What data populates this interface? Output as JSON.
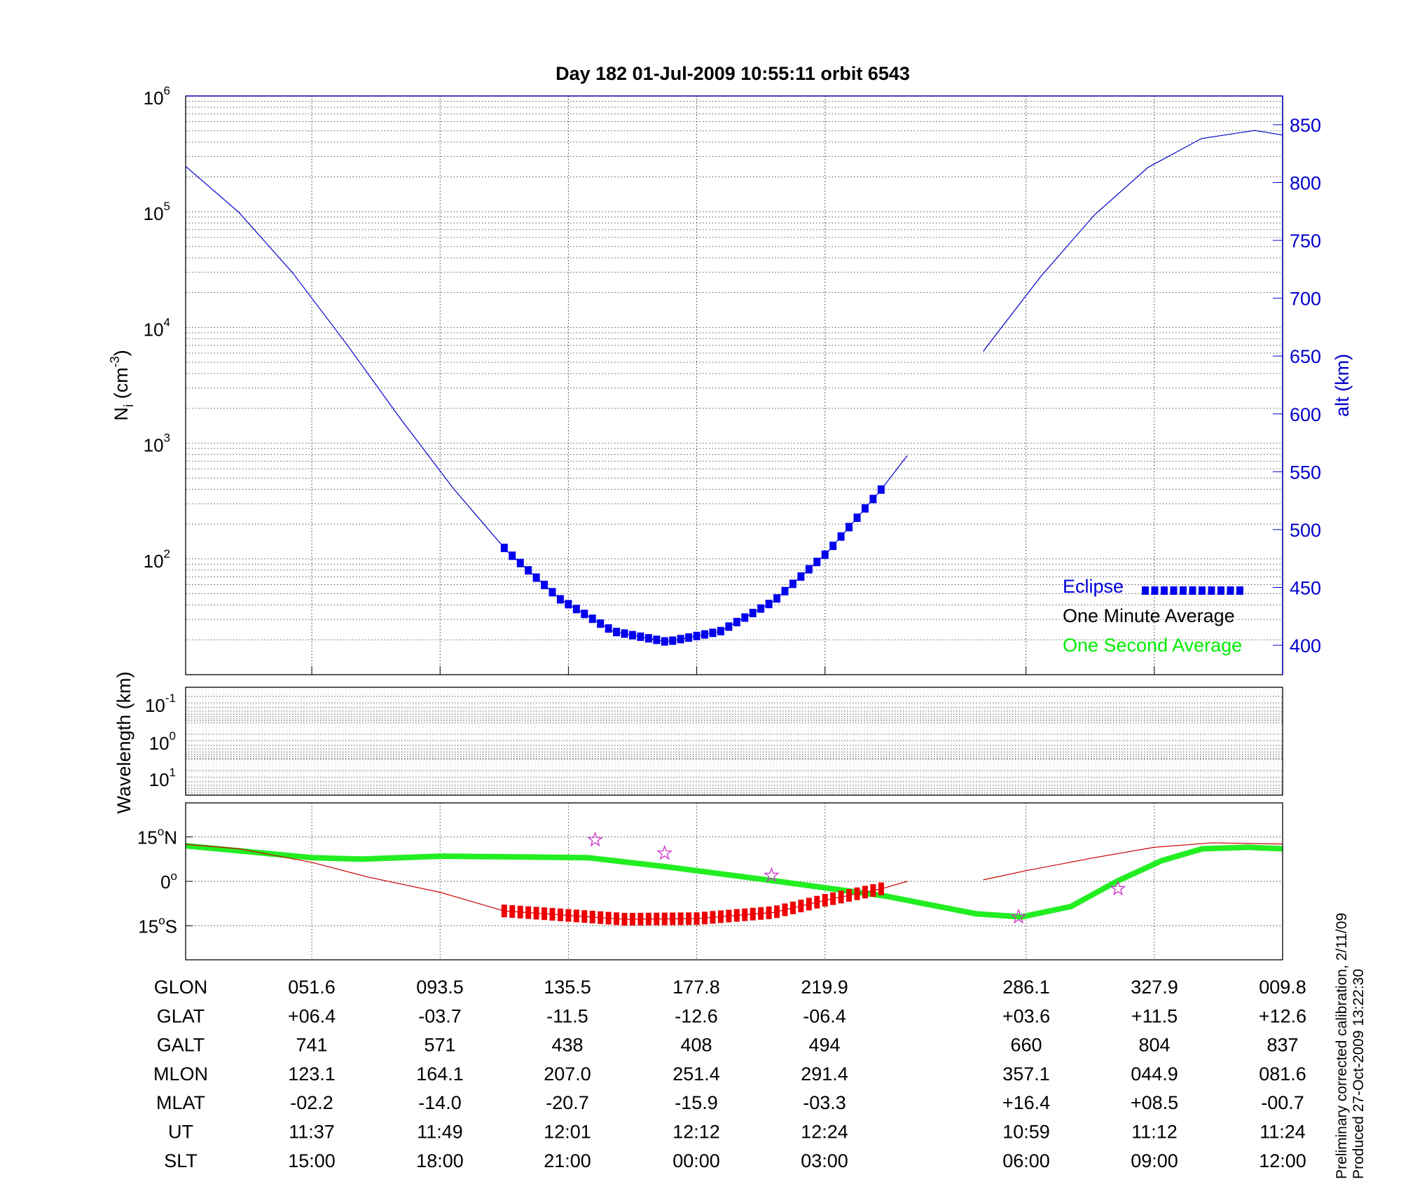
{
  "chart_data": [
    {
      "type": "line",
      "title": "Day 182  01-Jul-2009 10:55:11   orbit 6543",
      "ylabel_left": "N",
      "ylabel_left_sub": "i",
      "ylabel_left_unit": " (cm",
      "ylabel_left_exp": "-3",
      "ylabel_left_close": ")",
      "ylabel_right": "alt (km)",
      "xlim": [
        0,
        102.6
      ],
      "ylim_left_log10": [
        1,
        6
      ],
      "yticks_left": [
        {
          "base": "10",
          "exp": "6",
          "v": 6
        },
        {
          "base": "10",
          "exp": "5",
          "v": 5
        },
        {
          "base": "10",
          "exp": "4",
          "v": 4
        },
        {
          "base": "10",
          "exp": "3",
          "v": 3
        },
        {
          "base": "10",
          "exp": "2",
          "v": 2
        }
      ],
      "ylim_right": [
        374.6,
        874.8
      ],
      "yticks_right": [
        "850",
        "800",
        "750",
        "700",
        "650",
        "600",
        "550",
        "500",
        "450",
        "400"
      ],
      "xticks": [
        11.8,
        23.8,
        35.8,
        47.8,
        59.8,
        78.6,
        90.6,
        102.6
      ],
      "grid": true,
      "series": [
        {
          "name": "altitude",
          "color": "#0000cc",
          "segments": [
            {
              "t": [
                0,
                5,
                10,
                15,
                20,
                25,
                30,
                35,
                40,
                45,
                50,
                55,
                60,
                65,
                67.5
              ],
              "alt": [
                814,
                774,
                722,
                661,
                597,
                536,
                482,
                440,
                412,
                403,
                412,
                438,
                480,
                534,
                564
              ]
            },
            {
              "t": [
                74.6,
                75,
                80,
                85,
                90,
                95,
                100,
                102.6
              ],
              "alt": [
                654,
                659,
                719,
                772,
                813,
                838,
                845,
                841
              ]
            }
          ]
        }
      ],
      "eclipse_range": [
        29.8,
        65.1
      ],
      "legend": {
        "placement": "bottom-right",
        "items": [
          {
            "label": "Eclipse",
            "color": "#0000dd"
          },
          {
            "label": "One Minute Average",
            "color": "#000000"
          },
          {
            "label": "One Second Average",
            "color": "#00ee00"
          }
        ]
      }
    },
    {
      "type": "heatmap",
      "ylabel": "Wavelength (km)",
      "yticks": [
        {
          "base": "10",
          "exp": "-1"
        },
        {
          "base": "10",
          "exp": "0"
        },
        {
          "base": "10",
          "exp": "1"
        }
      ],
      "values": []
    },
    {
      "type": "line",
      "name": "map",
      "ylim": [
        -26.5,
        26.5
      ],
      "yticks": [
        {
          "v": 15,
          "label": "15",
          "unit": "o",
          "hemi": "N"
        },
        {
          "v": 0,
          "label": "0",
          "unit": "o",
          "hemi": ""
        },
        {
          "v": -15,
          "label": "15",
          "unit": "o",
          "hemi": "S"
        }
      ],
      "track": {
        "color": "#cc0000",
        "segments": [
          {
            "t": [
              0,
              5,
              11.8,
              17,
              23.8,
              29.8,
              35.8,
              41,
              47.8,
              55,
              59.8,
              65.1,
              67.5
            ],
            "lat": [
              12.5,
              11,
              6.4,
              1.5,
              -3.7,
              -10,
              -11.5,
              -12.8,
              -12.6,
              -10.5,
              -6.4,
              -2.5,
              0
            ]
          },
          {
            "t": [
              74.6,
              78.6,
              85,
              90.6,
              96,
              102.6
            ],
            "lat": [
              0.5,
              3.6,
              8,
              11.5,
              13,
              12.6
            ]
          }
        ]
      },
      "magnetic_equator": {
        "color": "#22ee22",
        "t": [
          0,
          11.8,
          16.5,
          23.8,
          37.6,
          44.8,
          55.4,
          65.5,
          74,
          78.2,
          82.8,
          87.1,
          91.3,
          95.1,
          99.3,
          102.6
        ],
        "lat": [
          12,
          8,
          7.5,
          8.5,
          8,
          5,
          0,
          -5,
          -11,
          -12,
          -8.5,
          0,
          7,
          11,
          11.5,
          11
        ]
      },
      "stars": {
        "color": "#cc33cc",
        "t": [
          38.3,
          44.8,
          54.8,
          77.9,
          87.2
        ],
        "lat": [
          14,
          9.5,
          2,
          -12,
          -2.5
        ]
      }
    }
  ],
  "table": {
    "rows": [
      {
        "label": "GLON",
        "values": [
          "051.6",
          "093.5",
          "135.5",
          "177.8",
          "219.9",
          "286.1",
          "327.9",
          "009.8"
        ]
      },
      {
        "label": "GLAT",
        "values": [
          "+06.4",
          "-03.7",
          "-11.5",
          "-12.6",
          "-06.4",
          "+03.6",
          "+11.5",
          "+12.6"
        ]
      },
      {
        "label": "GALT",
        "values": [
          "741",
          "571",
          "438",
          "408",
          "494",
          "660",
          "804",
          "837"
        ]
      },
      {
        "label": "MLON",
        "values": [
          "123.1",
          "164.1",
          "207.0",
          "251.4",
          "291.4",
          "357.1",
          "044.9",
          "081.6"
        ]
      },
      {
        "label": "MLAT",
        "values": [
          "-02.2",
          "-14.0",
          "-20.7",
          "-15.9",
          "-03.3",
          "+16.4",
          "+08.5",
          "-00.7"
        ]
      },
      {
        "label": "UT",
        "values": [
          "11:37",
          "11:49",
          "12:01",
          "12:12",
          "12:24",
          "10:59",
          "11:12",
          "11:24"
        ]
      },
      {
        "label": "SLT",
        "values": [
          "15:00",
          "18:00",
          "21:00",
          "00:00",
          "03:00",
          "06:00",
          "09:00",
          "12:00"
        ]
      }
    ]
  },
  "footer": {
    "line1": "Preliminary corrected calibration, 2/11/09",
    "line2": "Produced 27-Oct-2009 13:22:30"
  }
}
